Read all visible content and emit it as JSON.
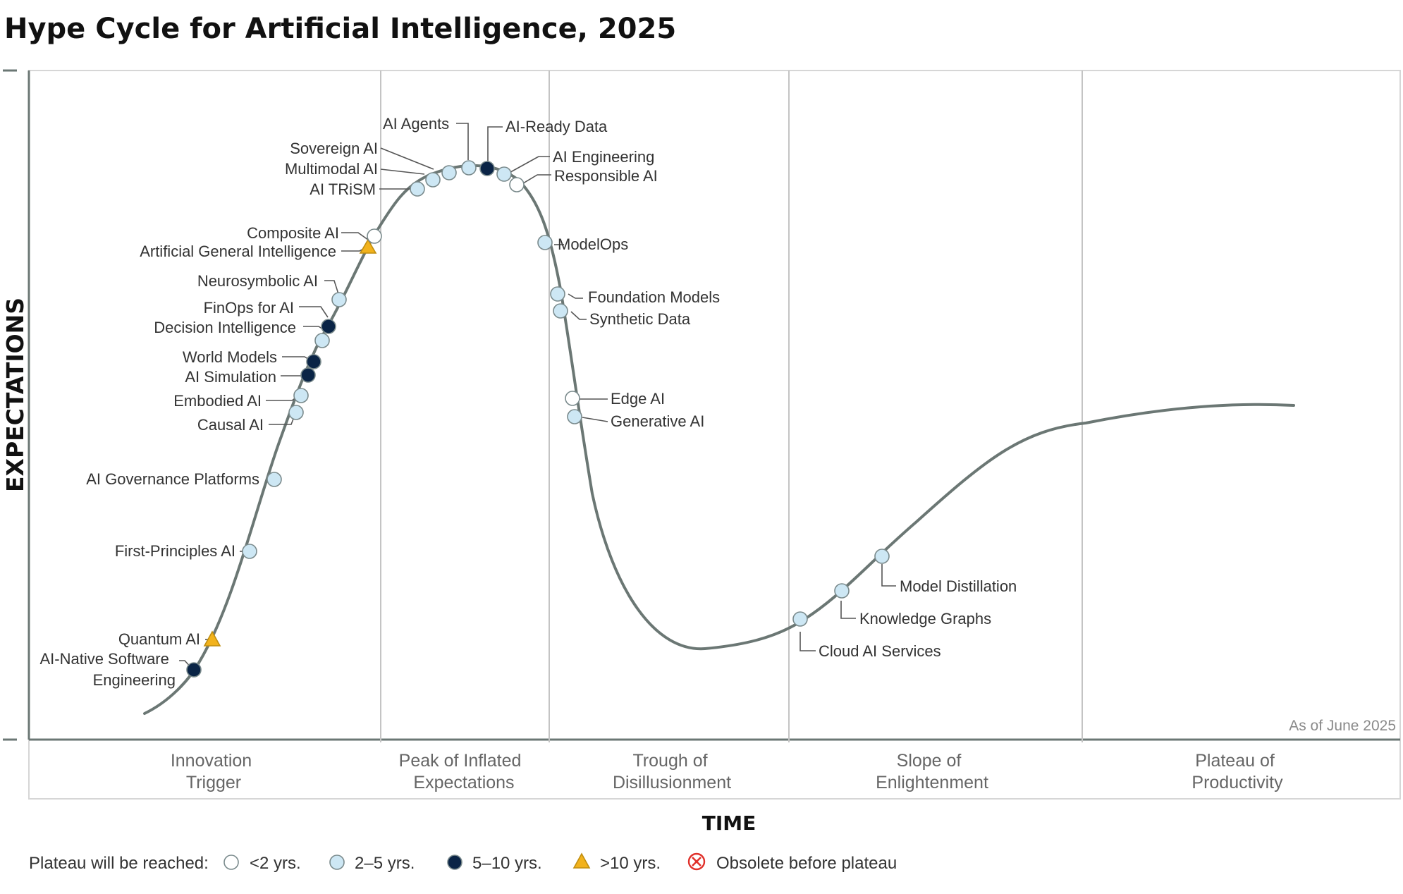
{
  "colors": {
    "under_2": "#ffffff",
    "two_to_five": "#cde7f4",
    "five_to_ten": "#0a2446",
    "over_10": "#f2b21c",
    "obsolete": "#e0302a",
    "curve": "#6b7774",
    "grid": "#c4c4c4"
  },
  "chart_data": {
    "type": "hype-cycle",
    "title": "Hype Cycle for Artificial Intelligence, 2025",
    "xlabel": "TIME",
    "ylabel": "EXPECTATIONS",
    "as_of": "As of June 2025",
    "phases": [
      {
        "key": "innovation",
        "lines": [
          "Innovation",
          "Trigger"
        ]
      },
      {
        "key": "peak",
        "lines": [
          "Peak of Inflated",
          "Expectations"
        ]
      },
      {
        "key": "trough",
        "lines": [
          "Trough of",
          "Disillusionment"
        ]
      },
      {
        "key": "slope",
        "lines": [
          "Slope of",
          "Enlightenment"
        ]
      },
      {
        "key": "plateau",
        "lines": [
          "Plateau of",
          "Productivity"
        ]
      }
    ],
    "legend": {
      "title": "Plateau will be reached:",
      "items": [
        {
          "key": "under_2",
          "label": "<2 yrs.",
          "marker": "circle-hollow"
        },
        {
          "key": "two_to_five",
          "label": "2–5 yrs.",
          "marker": "circle-light"
        },
        {
          "key": "five_to_ten",
          "label": "5–10 yrs.",
          "marker": "circle-dark"
        },
        {
          "key": "over_10",
          "label": ">10 yrs.",
          "marker": "triangle"
        },
        {
          "key": "obsolete",
          "label": "Obsolete before plateau",
          "marker": "cross-circle"
        }
      ]
    },
    "technologies": [
      {
        "name": "AI-Native Software Engineering",
        "phase": "Innovation Trigger",
        "plateau": "5–10 yrs."
      },
      {
        "name": "Quantum AI",
        "phase": "Innovation Trigger",
        "plateau": ">10 yrs."
      },
      {
        "name": "First-Principles AI",
        "phase": "Innovation Trigger",
        "plateau": "2–5 yrs."
      },
      {
        "name": "AI Governance Platforms",
        "phase": "Innovation Trigger",
        "plateau": "2–5 yrs."
      },
      {
        "name": "Causal AI",
        "phase": "Innovation Trigger",
        "plateau": "2–5 yrs."
      },
      {
        "name": "Embodied AI",
        "phase": "Innovation Trigger",
        "plateau": "2–5 yrs."
      },
      {
        "name": "AI Simulation",
        "phase": "Innovation Trigger",
        "plateau": "5–10 yrs."
      },
      {
        "name": "World Models",
        "phase": "Innovation Trigger",
        "plateau": "5–10 yrs."
      },
      {
        "name": "Decision Intelligence",
        "phase": "Innovation Trigger",
        "plateau": "2–5 yrs."
      },
      {
        "name": "FinOps for AI",
        "phase": "Innovation Trigger",
        "plateau": "5–10 yrs."
      },
      {
        "name": "Neurosymbolic AI",
        "phase": "Innovation Trigger",
        "plateau": "2–5 yrs."
      },
      {
        "name": "Artificial General Intelligence",
        "phase": "Innovation Trigger",
        "plateau": ">10 yrs."
      },
      {
        "name": "Composite AI",
        "phase": "Peak of Inflated Expectations",
        "plateau": "<2 yrs."
      },
      {
        "name": "AI TRiSM",
        "phase": "Peak of Inflated Expectations",
        "plateau": "2–5 yrs."
      },
      {
        "name": "Multimodal AI",
        "phase": "Peak of Inflated Expectations",
        "plateau": "2–5 yrs."
      },
      {
        "name": "Sovereign AI",
        "phase": "Peak of Inflated Expectations",
        "plateau": "2–5 yrs."
      },
      {
        "name": "AI Agents",
        "phase": "Peak of Inflated Expectations",
        "plateau": "2–5 yrs."
      },
      {
        "name": "AI-Ready Data",
        "phase": "Peak of Inflated Expectations",
        "plateau": "5–10 yrs."
      },
      {
        "name": "AI Engineering",
        "phase": "Peak of Inflated Expectations",
        "plateau": "2–5 yrs."
      },
      {
        "name": "Responsible AI",
        "phase": "Peak of Inflated Expectations",
        "plateau": "<2 yrs."
      },
      {
        "name": "ModelOps",
        "phase": "Trough of Disillusionment",
        "plateau": "2–5 yrs."
      },
      {
        "name": "Foundation Models",
        "phase": "Trough of Disillusionment",
        "plateau": "2–5 yrs."
      },
      {
        "name": "Synthetic Data",
        "phase": "Trough of Disillusionment",
        "plateau": "2–5 yrs."
      },
      {
        "name": "Edge AI",
        "phase": "Trough of Disillusionment",
        "plateau": "<2 yrs."
      },
      {
        "name": "Generative AI",
        "phase": "Trough of Disillusionment",
        "plateau": "2–5 yrs."
      },
      {
        "name": "Cloud AI Services",
        "phase": "Slope of Enlightenment",
        "plateau": "2–5 yrs."
      },
      {
        "name": "Knowledge Graphs",
        "phase": "Slope of Enlightenment",
        "plateau": "2–5 yrs."
      },
      {
        "name": "Model Distillation",
        "phase": "Slope of Enlightenment",
        "plateau": "2–5 yrs."
      }
    ]
  }
}
